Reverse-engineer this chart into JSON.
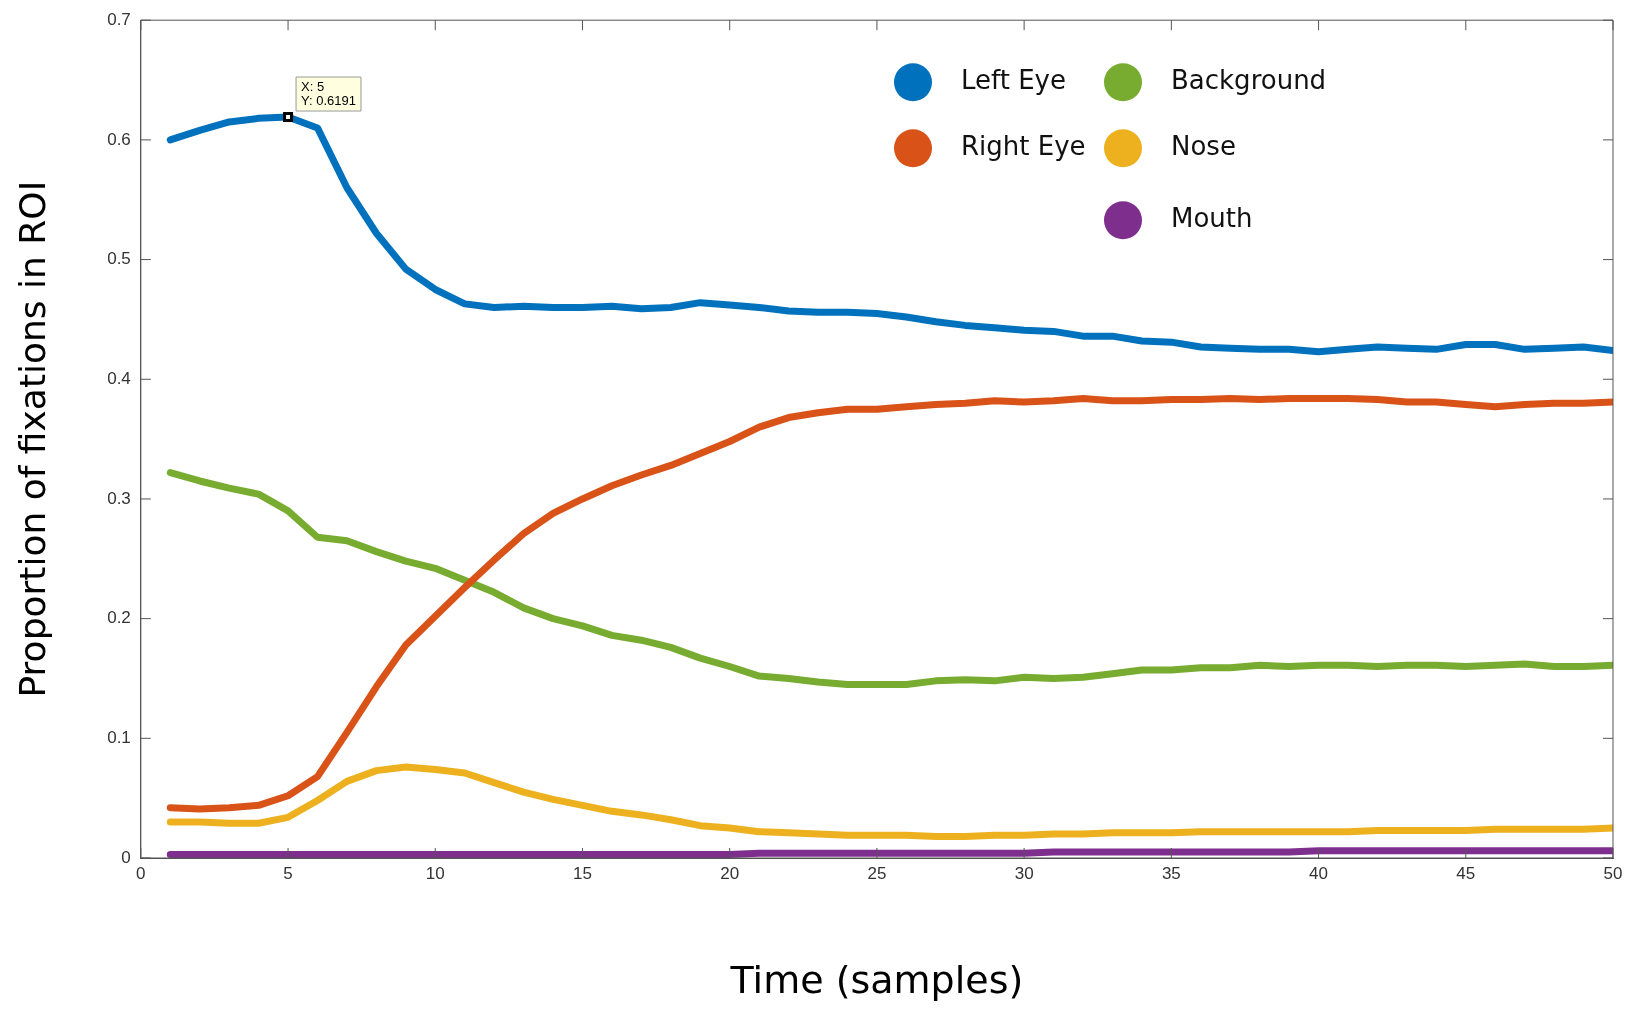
{
  "chart_data": {
    "type": "line",
    "xlabel": "Time (samples)",
    "ylabel": "Proportion of fixations in ROI",
    "x": [
      1,
      2,
      3,
      4,
      5,
      6,
      7,
      8,
      9,
      10,
      11,
      12,
      13,
      14,
      15,
      16,
      17,
      18,
      19,
      20,
      21,
      22,
      23,
      24,
      25,
      26,
      27,
      28,
      29,
      30,
      31,
      32,
      33,
      34,
      35,
      36,
      37,
      38,
      39,
      40,
      41,
      42,
      43,
      44,
      45,
      46,
      47,
      48,
      49,
      50
    ],
    "xlim": [
      0,
      50
    ],
    "xticks": [
      0,
      5,
      10,
      15,
      20,
      25,
      30,
      35,
      40,
      45,
      50
    ],
    "ylim": [
      0,
      0.7
    ],
    "yticks": [
      0,
      0.1,
      0.2,
      0.3,
      0.4,
      0.5,
      0.6,
      0.7
    ],
    "grid": false,
    "legend": "top right",
    "marker": "none",
    "line_style": "solid",
    "annotations": [
      {
        "text": "X: 5\nY: 0.6191",
        "x": 5,
        "y": 0.6191
      }
    ],
    "series": [
      {
        "name": "Left Eye",
        "color": "#0072bd",
        "values": [
          0.6,
          0.608,
          0.615,
          0.618,
          0.6191,
          0.61,
          0.56,
          0.522,
          0.492,
          0.475,
          0.463,
          0.46,
          0.461,
          0.46,
          0.46,
          0.461,
          0.459,
          0.46,
          0.464,
          0.462,
          0.46,
          0.457,
          0.456,
          0.456,
          0.455,
          0.452,
          0.448,
          0.445,
          0.443,
          0.441,
          0.44,
          0.436,
          0.436,
          0.432,
          0.431,
          0.427,
          0.426,
          0.425,
          0.425,
          0.423,
          0.425,
          0.427,
          0.426,
          0.425,
          0.429,
          0.429,
          0.425,
          0.426,
          0.427,
          0.424
        ]
      },
      {
        "name": "Right Eye",
        "color": "#d95319",
        "values": [
          0.042,
          0.041,
          0.042,
          0.044,
          0.052,
          0.068,
          0.105,
          0.143,
          0.178,
          0.202,
          0.226,
          0.249,
          0.271,
          0.288,
          0.3,
          0.311,
          0.32,
          0.328,
          0.338,
          0.348,
          0.36,
          0.368,
          0.372,
          0.375,
          0.375,
          0.377,
          0.379,
          0.38,
          0.382,
          0.381,
          0.382,
          0.384,
          0.382,
          0.382,
          0.383,
          0.383,
          0.384,
          0.383,
          0.384,
          0.384,
          0.384,
          0.383,
          0.381,
          0.381,
          0.379,
          0.377,
          0.379,
          0.38,
          0.38,
          0.381
        ]
      },
      {
        "name": "Background",
        "color": "#77ac30",
        "values": [
          0.322,
          0.315,
          0.309,
          0.304,
          0.29,
          0.268,
          0.265,
          0.256,
          0.248,
          0.242,
          0.232,
          0.222,
          0.209,
          0.2,
          0.194,
          0.186,
          0.182,
          0.176,
          0.167,
          0.16,
          0.152,
          0.15,
          0.147,
          0.145,
          0.145,
          0.145,
          0.148,
          0.149,
          0.148,
          0.151,
          0.15,
          0.151,
          0.154,
          0.157,
          0.157,
          0.159,
          0.159,
          0.161,
          0.16,
          0.161,
          0.161,
          0.16,
          0.161,
          0.161,
          0.16,
          0.161,
          0.162,
          0.16,
          0.16,
          0.161
        ]
      },
      {
        "name": "Nose",
        "color": "#edb120",
        "values": [
          0.03,
          0.03,
          0.029,
          0.029,
          0.034,
          0.048,
          0.064,
          0.073,
          0.076,
          0.074,
          0.071,
          0.063,
          0.055,
          0.049,
          0.044,
          0.039,
          0.036,
          0.032,
          0.027,
          0.025,
          0.022,
          0.021,
          0.02,
          0.019,
          0.019,
          0.019,
          0.018,
          0.018,
          0.019,
          0.019,
          0.02,
          0.02,
          0.021,
          0.021,
          0.021,
          0.022,
          0.022,
          0.022,
          0.022,
          0.022,
          0.022,
          0.023,
          0.023,
          0.023,
          0.023,
          0.024,
          0.024,
          0.024,
          0.024,
          0.025
        ]
      },
      {
        "name": "Mouth",
        "color": "#7e2f8e",
        "values": [
          0.003,
          0.003,
          0.003,
          0.003,
          0.003,
          0.003,
          0.003,
          0.003,
          0.003,
          0.003,
          0.003,
          0.003,
          0.003,
          0.003,
          0.003,
          0.003,
          0.003,
          0.003,
          0.003,
          0.003,
          0.004,
          0.004,
          0.004,
          0.004,
          0.004,
          0.004,
          0.004,
          0.004,
          0.004,
          0.004,
          0.005,
          0.005,
          0.005,
          0.005,
          0.005,
          0.005,
          0.005,
          0.005,
          0.005,
          0.006,
          0.006,
          0.006,
          0.006,
          0.006,
          0.006,
          0.006,
          0.006,
          0.006,
          0.006,
          0.006
        ]
      }
    ]
  }
}
